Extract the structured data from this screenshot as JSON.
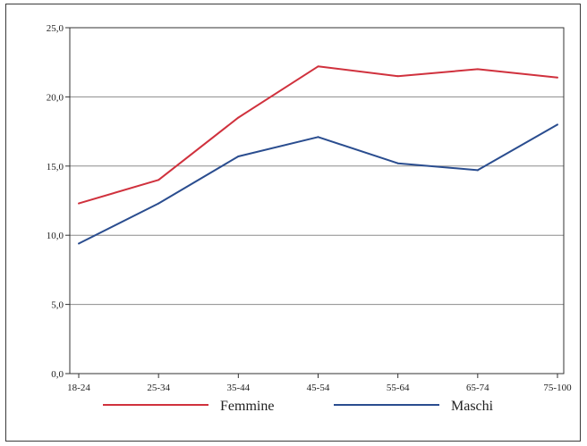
{
  "chart_data": {
    "type": "line",
    "categories": [
      "18-24",
      "25-34",
      "35-44",
      "45-54",
      "55-64",
      "65-74",
      "75-100"
    ],
    "y_ticks": [
      "0,0",
      "5,0",
      "10,0",
      "15,0",
      "20,0",
      "25,0"
    ],
    "ylim": [
      0,
      25
    ],
    "grid": true,
    "legend_position": "bottom",
    "series": [
      {
        "name": "Femmine",
        "color": "#d0313d",
        "values": [
          12.3,
          14.0,
          18.5,
          22.2,
          21.5,
          22.0,
          21.4
        ]
      },
      {
        "name": "Maschi",
        "color": "#2a4d8f",
        "values": [
          9.4,
          12.3,
          15.7,
          17.1,
          15.2,
          14.7,
          18.0
        ]
      }
    ]
  }
}
